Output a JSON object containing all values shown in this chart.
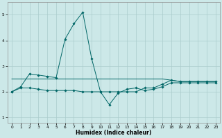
{
  "x": [
    0,
    1,
    2,
    3,
    4,
    5,
    6,
    7,
    8,
    9,
    10,
    11,
    12,
    13,
    14,
    15,
    16,
    17,
    18,
    19,
    20,
    21,
    22,
    23
  ],
  "line_spike": [
    2.0,
    2.2,
    2.7,
    2.65,
    2.6,
    2.55,
    4.05,
    4.65,
    5.1,
    3.3,
    2.0,
    2.0,
    2.0,
    2.0,
    2.0,
    2.15,
    2.15,
    2.3,
    2.45,
    2.4,
    2.4,
    2.4,
    2.4,
    2.4
  ],
  "line_dip": [
    2.0,
    2.15,
    2.15,
    2.1,
    2.05,
    2.05,
    2.05,
    2.05,
    2.0,
    2.0,
    2.0,
    1.5,
    1.95,
    2.1,
    2.15,
    2.05,
    2.1,
    2.2,
    2.35,
    2.35,
    2.35,
    2.35,
    2.35,
    2.35
  ],
  "line_flat": [
    2.5,
    2.5,
    2.5,
    2.5,
    2.5,
    2.5,
    2.5,
    2.5,
    2.5,
    2.5,
    2.5,
    2.5,
    2.5,
    2.5,
    2.5,
    2.5,
    2.5,
    2.5,
    2.45,
    2.4,
    2.4,
    2.4,
    2.4,
    2.4
  ],
  "bg_color": "#cce8e8",
  "line_color": "#006666",
  "grid_color": "#aacccc",
  "xlabel": "Humidex (Indice chaleur)",
  "ylim": [
    0.8,
    5.5
  ],
  "xlim": [
    -0.5,
    23.5
  ],
  "yticks": [
    1,
    2,
    3,
    4,
    5
  ],
  "xticks": [
    0,
    1,
    2,
    3,
    4,
    5,
    6,
    7,
    8,
    9,
    10,
    11,
    12,
    13,
    14,
    15,
    16,
    17,
    18,
    19,
    20,
    21,
    22,
    23
  ]
}
